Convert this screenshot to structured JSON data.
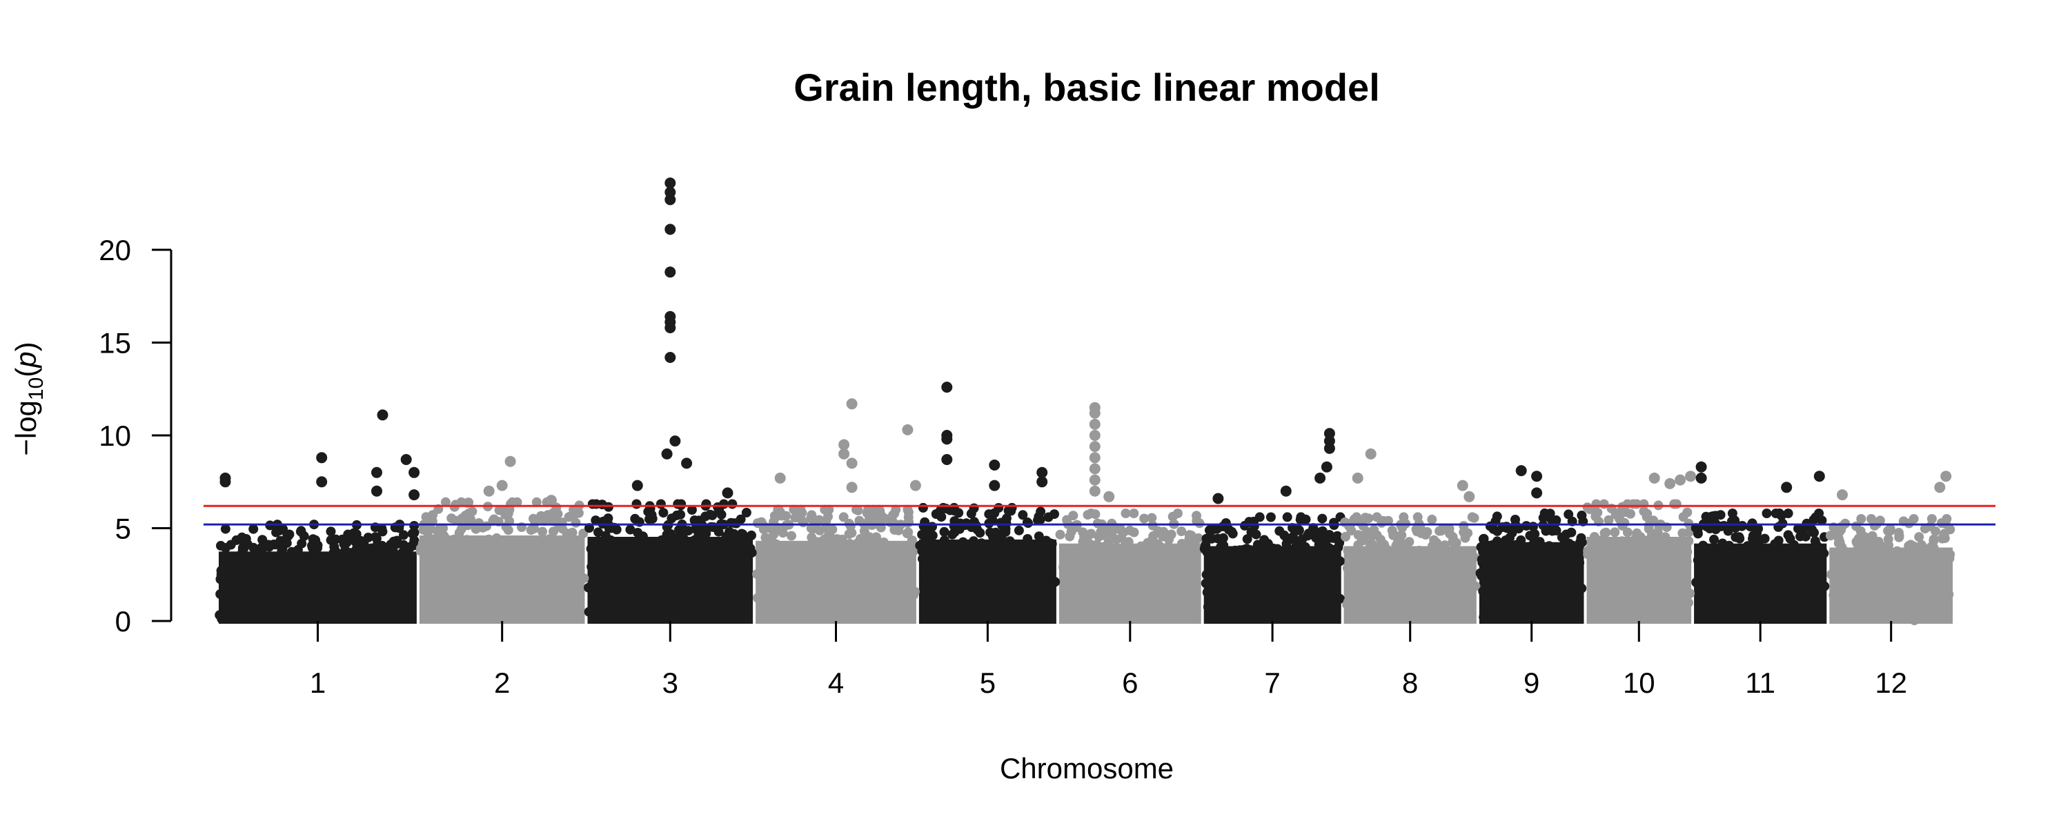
{
  "chart_data": {
    "type": "scatter",
    "title": "Grain length, basic linear model",
    "xlabel": "Chromosome",
    "ylabel": {
      "prefix": "−log",
      "subscript": "10",
      "open": "(",
      "var": "p",
      "close": ")"
    },
    "ylim": [
      0,
      24
    ],
    "yticks": [
      0,
      5,
      10,
      15,
      20
    ],
    "grid": false,
    "legend": "none",
    "colors": {
      "odd": "#1c1c1c",
      "even": "#999999",
      "threshold_high": "#e8201e",
      "threshold_low": "#1a22a8"
    },
    "thresholds": [
      {
        "value": 6.2,
        "color": "#e8201e"
      },
      {
        "value": 5.2,
        "color": "#1a22a8"
      }
    ],
    "chromosomes": [
      {
        "label": "1",
        "length": 43,
        "base": 5.2,
        "peaks": [
          [
            0.03,
            7.7
          ],
          [
            0.03,
            7.5
          ],
          [
            0.52,
            8.8
          ],
          [
            0.52,
            7.5
          ],
          [
            0.83,
            11.1
          ],
          [
            0.8,
            8.0
          ],
          [
            0.8,
            7.0
          ],
          [
            0.95,
            8.7
          ],
          [
            0.99,
            8.0
          ],
          [
            0.99,
            6.8
          ]
        ]
      },
      {
        "label": "2",
        "length": 36,
        "base": 6.4,
        "peaks": [
          [
            0.55,
            8.6
          ],
          [
            0.42,
            7.0
          ],
          [
            0.5,
            7.3
          ],
          [
            0.8,
            6.5
          ]
        ]
      },
      {
        "label": "3",
        "length": 36,
        "base": 6.3,
        "peaks": [
          [
            0.5,
            23.6
          ],
          [
            0.5,
            23.1
          ],
          [
            0.5,
            22.7
          ],
          [
            0.5,
            21.1
          ],
          [
            0.5,
            18.8
          ],
          [
            0.5,
            16.4
          ],
          [
            0.5,
            16.1
          ],
          [
            0.5,
            15.8
          ],
          [
            0.5,
            14.2
          ],
          [
            0.53,
            9.7
          ],
          [
            0.48,
            9.0
          ],
          [
            0.6,
            8.5
          ],
          [
            0.3,
            7.3
          ],
          [
            0.85,
            6.9
          ]
        ]
      },
      {
        "label": "4",
        "length": 35,
        "base": 6.0,
        "peaks": [
          [
            0.6,
            11.7
          ],
          [
            0.55,
            9.5
          ],
          [
            0.55,
            9.0
          ],
          [
            0.6,
            8.5
          ],
          [
            0.95,
            10.3
          ],
          [
            0.6,
            7.2
          ],
          [
            0.15,
            7.7
          ],
          [
            1.0,
            7.3
          ]
        ]
      },
      {
        "label": "5",
        "length": 30,
        "base": 6.1,
        "peaks": [
          [
            0.2,
            12.6
          ],
          [
            0.2,
            10.0
          ],
          [
            0.2,
            9.8
          ],
          [
            0.2,
            8.7
          ],
          [
            0.55,
            8.4
          ],
          [
            0.55,
            7.3
          ],
          [
            0.9,
            8.0
          ],
          [
            0.9,
            7.5
          ]
        ]
      },
      {
        "label": "6",
        "length": 31,
        "base": 5.8,
        "peaks": [
          [
            0.25,
            11.5
          ],
          [
            0.25,
            11.2
          ],
          [
            0.25,
            10.6
          ],
          [
            0.25,
            10.0
          ],
          [
            0.25,
            9.4
          ],
          [
            0.25,
            8.8
          ],
          [
            0.25,
            8.2
          ],
          [
            0.25,
            7.6
          ],
          [
            0.25,
            7.0
          ],
          [
            0.35,
            6.7
          ]
        ]
      },
      {
        "label": "7",
        "length": 30,
        "base": 5.6,
        "peaks": [
          [
            0.92,
            10.1
          ],
          [
            0.92,
            9.7
          ],
          [
            0.92,
            9.3
          ],
          [
            0.9,
            8.3
          ],
          [
            0.85,
            7.7
          ],
          [
            0.6,
            7.0
          ],
          [
            0.1,
            6.6
          ]
        ]
      },
      {
        "label": "8",
        "length": 29,
        "base": 5.6,
        "peaks": [
          [
            0.2,
            9.0
          ],
          [
            0.1,
            7.7
          ],
          [
            0.9,
            7.3
          ],
          [
            0.95,
            6.7
          ]
        ]
      },
      {
        "label": "9",
        "length": 23,
        "base": 5.9,
        "peaks": [
          [
            0.4,
            8.1
          ],
          [
            0.55,
            7.8
          ],
          [
            0.55,
            6.9
          ]
        ]
      },
      {
        "label": "10",
        "length": 23,
        "base": 6.3,
        "peaks": [
          [
            0.65,
            7.7
          ],
          [
            0.8,
            7.4
          ],
          [
            0.9,
            7.6
          ],
          [
            1.0,
            7.8
          ]
        ]
      },
      {
        "label": "11",
        "length": 29,
        "base": 5.8,
        "peaks": [
          [
            0.05,
            8.3
          ],
          [
            0.05,
            7.7
          ],
          [
            0.3,
            5.4
          ],
          [
            0.7,
            7.2
          ],
          [
            0.95,
            7.8
          ]
        ]
      },
      {
        "label": "12",
        "length": 27,
        "base": 5.5,
        "peaks": [
          [
            0.1,
            6.8
          ],
          [
            0.95,
            7.8
          ],
          [
            0.9,
            7.2
          ]
        ]
      }
    ]
  }
}
